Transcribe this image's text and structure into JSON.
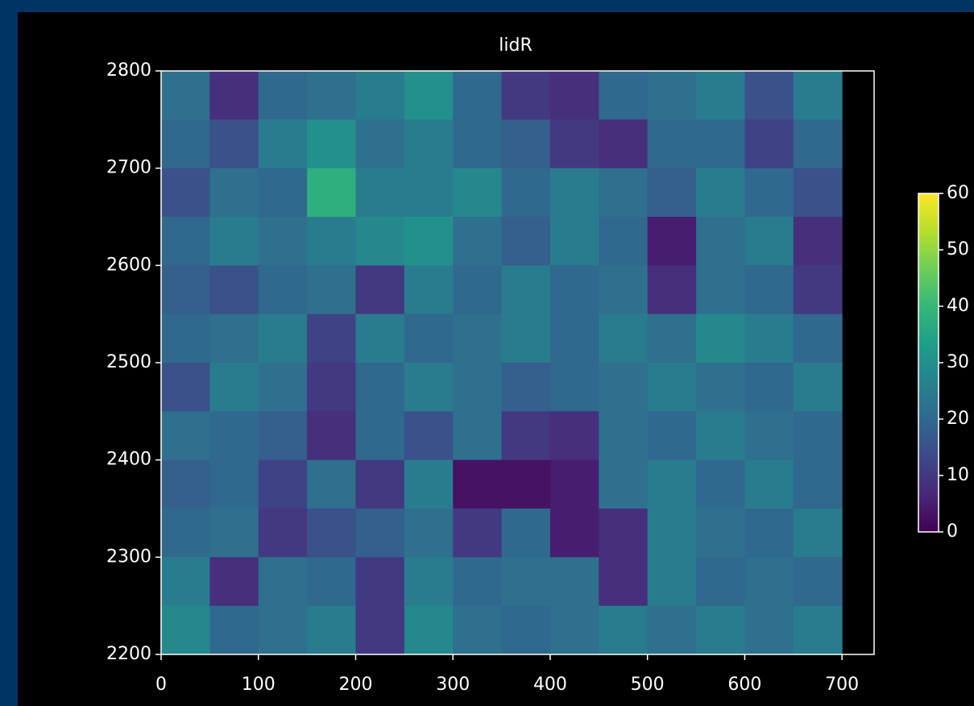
{
  "chart_data": {
    "type": "heatmap",
    "title": "lidR",
    "cmap": "viridis",
    "x": [
      25,
      75,
      125,
      175,
      225,
      275,
      325,
      375,
      425,
      475,
      525,
      575,
      625,
      675
    ],
    "y": [
      2775,
      2725,
      2675,
      2625,
      2575,
      2525,
      2475,
      2425,
      2375,
      2325,
      2275,
      2225
    ],
    "z": [
      [
        22,
        8,
        20,
        22,
        25,
        30,
        20,
        10,
        8,
        20,
        22,
        25,
        15,
        25
      ],
      [
        20,
        15,
        25,
        30,
        22,
        25,
        20,
        18,
        10,
        8,
        20,
        20,
        12,
        20
      ],
      [
        15,
        22,
        20,
        38,
        25,
        25,
        28,
        20,
        25,
        22,
        18,
        25,
        20,
        15
      ],
      [
        20,
        25,
        22,
        25,
        28,
        30,
        22,
        18,
        25,
        20,
        5,
        22,
        25,
        8
      ],
      [
        18,
        15,
        20,
        22,
        10,
        25,
        20,
        25,
        20,
        22,
        8,
        22,
        20,
        10
      ],
      [
        20,
        22,
        25,
        12,
        25,
        20,
        22,
        25,
        20,
        25,
        22,
        28,
        25,
        20
      ],
      [
        15,
        25,
        22,
        10,
        20,
        25,
        22,
        18,
        20,
        22,
        25,
        22,
        20,
        25
      ],
      [
        22,
        20,
        18,
        8,
        20,
        15,
        22,
        10,
        8,
        22,
        20,
        25,
        22,
        20
      ],
      [
        18,
        20,
        12,
        22,
        10,
        25,
        3,
        3,
        5,
        22,
        25,
        20,
        25,
        20
      ],
      [
        20,
        22,
        10,
        15,
        18,
        22,
        10,
        20,
        5,
        8,
        25,
        22,
        20,
        25
      ],
      [
        25,
        8,
        22,
        20,
        10,
        25,
        20,
        22,
        22,
        8,
        25,
        20,
        22,
        20
      ],
      [
        28,
        20,
        22,
        25,
        10,
        28,
        22,
        20,
        22,
        25,
        22,
        25,
        22,
        25
      ]
    ],
    "xlim": [
      0,
      733
    ],
    "xticks": [
      0,
      100,
      200,
      300,
      400,
      500,
      600,
      700
    ],
    "ylim": [
      2200,
      2800
    ],
    "yticks": [
      2200,
      2300,
      2400,
      2500,
      2600,
      2700,
      2800
    ],
    "clim": [
      0,
      60
    ],
    "cticks": [
      0,
      10,
      20,
      30,
      40,
      50,
      60
    ]
  }
}
